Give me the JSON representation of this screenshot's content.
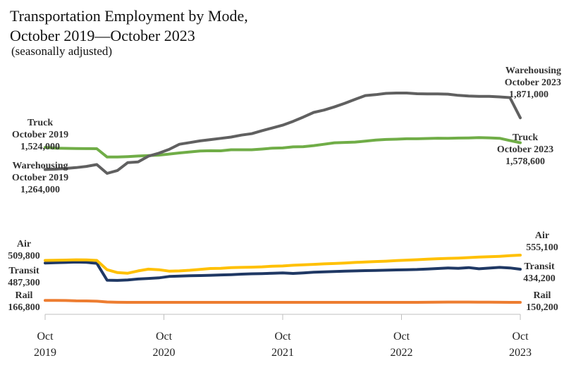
{
  "title_line1": "Transportation Employment by Mode,",
  "title_line2": "October 2019—October 2023",
  "subtitle": "(seasonally adjusted)",
  "chart_data": {
    "type": "line",
    "title": "Transportation Employment by Mode, October 2019—October 2023",
    "subtitle": "(seasonally adjusted)",
    "x_ticks": [
      {
        "month": "Oct",
        "year": "2019"
      },
      {
        "month": "Oct",
        "year": "2020"
      },
      {
        "month": "Oct",
        "year": "2021"
      },
      {
        "month": "Oct",
        "year": "2022"
      },
      {
        "month": "Oct",
        "year": "2023"
      }
    ],
    "x_start": "2019-10",
    "x_end": "2023-10",
    "series": [
      {
        "key": "warehousing",
        "name": "Warehousing",
        "color": "#606060",
        "label_start": [
          "Warehousing",
          "October 2019",
          "1,264,000"
        ],
        "label_end": [
          "Warehousing",
          "October 2023",
          "1,871,000"
        ],
        "values": [
          1264000,
          1268000,
          1276000,
          1286000,
          1300000,
          1322000,
          1218000,
          1252000,
          1345000,
          1352000,
          1420000,
          1455000,
          1500000,
          1560000,
          1580000,
          1600000,
          1615000,
          1630000,
          1645000,
          1668000,
          1685000,
          1720000,
          1752000,
          1785000,
          1830000,
          1880000,
          1935000,
          1962000,
          2000000,
          2042000,
          2088000,
          2133000,
          2144000,
          2159000,
          2163000,
          2163000,
          2155000,
          2153000,
          2153000,
          2150000,
          2136000,
          2127000,
          2124000,
          2124000,
          2117000,
          2109000,
          1871000
        ]
      },
      {
        "key": "truck",
        "name": "Truck",
        "color": "#70ad47",
        "label_start": [
          "Truck",
          "October 2019",
          "1,524,000"
        ],
        "label_end": [
          "Truck",
          "October 2023",
          "1,578,600"
        ],
        "values": [
          1524000,
          1515000,
          1512000,
          1510000,
          1509000,
          1508000,
          1410000,
          1410000,
          1415000,
          1422000,
          1428000,
          1433000,
          1445000,
          1458000,
          1470000,
          1482000,
          1484000,
          1483000,
          1496000,
          1496000,
          1496000,
          1504000,
          1515000,
          1517000,
          1530000,
          1532000,
          1545000,
          1560000,
          1578000,
          1582000,
          1586000,
          1597000,
          1609000,
          1617000,
          1620000,
          1625000,
          1625000,
          1628000,
          1632000,
          1630000,
          1633000,
          1635000,
          1638000,
          1636000,
          1631000,
          1604000,
          1578600
        ]
      },
      {
        "key": "air",
        "name": "Air",
        "color": "#ffc000",
        "label_start": [
          "Air",
          "509,800"
        ],
        "label_end": [
          "Air",
          "555,100"
        ],
        "values": [
          509800,
          511000,
          513000,
          515000,
          514000,
          510000,
          430000,
          405000,
          400000,
          420000,
          435000,
          430000,
          418000,
          420000,
          425000,
          433000,
          440000,
          442000,
          448000,
          450000,
          452000,
          455000,
          460000,
          462000,
          468000,
          472000,
          476000,
          480000,
          483000,
          487000,
          492000,
          496000,
          500000,
          503000,
          508000,
          512000,
          516000,
          520000,
          524000,
          527000,
          530000,
          534000,
          538000,
          541000,
          545000,
          550000,
          555100
        ]
      },
      {
        "key": "transit",
        "name": "Transit",
        "color": "#1f3864",
        "label_start": [
          "Transit",
          "487,300"
        ],
        "label_end": [
          "Transit",
          "434,200"
        ],
        "values": [
          487300,
          490000,
          492000,
          495000,
          493000,
          485000,
          340000,
          338000,
          342000,
          350000,
          355000,
          360000,
          372000,
          375000,
          378000,
          380000,
          382000,
          385000,
          388000,
          392000,
          395000,
          397000,
          400000,
          402000,
          398000,
          403000,
          408000,
          412000,
          415000,
          418000,
          420000,
          422000,
          424000,
          426000,
          428000,
          430000,
          432000,
          436000,
          440000,
          445000,
          442000,
          448000,
          438000,
          444000,
          450000,
          445000,
          434200
        ]
      },
      {
        "key": "rail",
        "name": "Rail",
        "color": "#ed7d31",
        "label_start": [
          "Rail",
          "166,800"
        ],
        "label_end": [
          "Rail",
          "150,200"
        ],
        "values": [
          166800,
          166500,
          166200,
          163000,
          162000,
          160000,
          153000,
          151000,
          150500,
          150200,
          150200,
          150200,
          150200,
          150200,
          150200,
          150200,
          150200,
          150200,
          150200,
          150200,
          150200,
          150200,
          150200,
          150200,
          150200,
          150200,
          150200,
          150200,
          150200,
          150200,
          150200,
          150200,
          150200,
          150200,
          150200,
          150200,
          150200,
          151000,
          152000,
          152500,
          152500,
          152500,
          152000,
          151500,
          151000,
          150500,
          150200
        ]
      }
    ]
  }
}
